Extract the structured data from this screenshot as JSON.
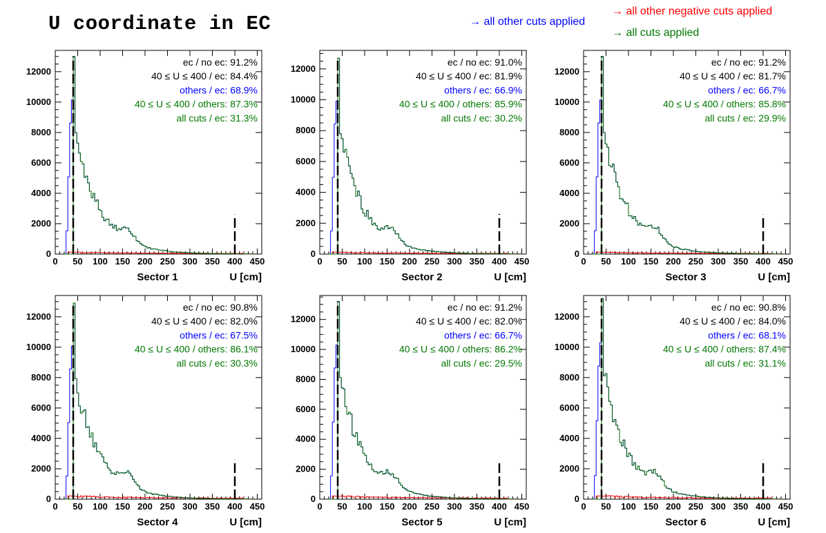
{
  "figure": {
    "title": "U coordinate in EC"
  },
  "legend": [
    {
      "text": "→ all other cuts applied",
      "color": "#0000ff"
    },
    {
      "text": "→ all other negative cuts applied",
      "color": "#ff0000"
    },
    {
      "text": "→ all cuts applied",
      "color": "#007700"
    }
  ],
  "colors": {
    "other_cuts": "#0000ff",
    "negative_cuts": "#ff0000",
    "all_cuts": "#006400",
    "cut_lines": "#000000"
  },
  "chart_data": [
    {
      "type": "histogram",
      "panel": "Sector 1",
      "xlabel": "U [cm]",
      "xlim": [
        0,
        460
      ],
      "ylim": [
        0,
        13400
      ],
      "xticks": [
        0,
        50,
        100,
        150,
        200,
        250,
        300,
        350,
        400,
        450
      ],
      "yticks": [
        0,
        2000,
        4000,
        6000,
        8000,
        10000,
        12000
      ],
      "cut_lines": [
        40,
        400
      ],
      "series": [
        {
          "key": "other_cuts",
          "peak": 13000
        },
        {
          "key": "all_cuts",
          "peak": 13000
        },
        {
          "key": "negative_cuts",
          "peak": 120
        }
      ],
      "stats": [
        {
          "label": "ec / no ec:",
          "value": "91.2%",
          "color": "#000000"
        },
        {
          "label": "40 ≤ U ≤ 400 / ec:",
          "value": "84.4%",
          "color": "#000000"
        },
        {
          "label": "others / ec:",
          "value": "68.9%",
          "color": "#0000ff"
        },
        {
          "label": "40 ≤ U ≤ 400 / others:",
          "value": "87.3%",
          "color": "#007700"
        },
        {
          "label": "all cuts / ec:",
          "value": "31.3%",
          "color": "#007700"
        }
      ]
    },
    {
      "type": "histogram",
      "panel": "Sector 2",
      "xlabel": "U [cm]",
      "xlim": [
        0,
        460
      ],
      "ylim": [
        0,
        13200
      ],
      "xticks": [
        0,
        50,
        100,
        150,
        200,
        250,
        300,
        350,
        400,
        450
      ],
      "yticks": [
        0,
        2000,
        4000,
        6000,
        8000,
        10000,
        12000
      ],
      "cut_lines": [
        40,
        400
      ],
      "series": [
        {
          "key": "other_cuts",
          "peak": 12700
        },
        {
          "key": "all_cuts",
          "peak": 12700
        },
        {
          "key": "negative_cuts",
          "peak": 120
        }
      ],
      "stats": [
        {
          "label": "ec / no ec:",
          "value": "91.0%",
          "color": "#000000"
        },
        {
          "label": "40 ≤ U ≤ 400 / ec:",
          "value": "81.9%",
          "color": "#000000"
        },
        {
          "label": "others / ec:",
          "value": "66.9%",
          "color": "#0000ff"
        },
        {
          "label": "40 ≤ U ≤ 400 / others:",
          "value": "85.9%",
          "color": "#007700"
        },
        {
          "label": "all cuts / ec:",
          "value": "30.2%",
          "color": "#007700"
        }
      ]
    },
    {
      "type": "histogram",
      "panel": "Sector 3",
      "xlabel": "U [cm]",
      "xlim": [
        0,
        460
      ],
      "ylim": [
        0,
        13400
      ],
      "xticks": [
        0,
        50,
        100,
        150,
        200,
        250,
        300,
        350,
        400,
        450
      ],
      "yticks": [
        0,
        2000,
        4000,
        6000,
        8000,
        10000,
        12000
      ],
      "cut_lines": [
        40,
        400
      ],
      "series": [
        {
          "key": "other_cuts",
          "peak": 13000
        },
        {
          "key": "all_cuts",
          "peak": 13000
        },
        {
          "key": "negative_cuts",
          "peak": 120
        }
      ],
      "stats": [
        {
          "label": "ec / no ec:",
          "value": "91.2%",
          "color": "#000000"
        },
        {
          "label": "40 ≤ U ≤ 400 / ec:",
          "value": "81.7%",
          "color": "#000000"
        },
        {
          "label": "others / ec:",
          "value": "66.7%",
          "color": "#0000ff"
        },
        {
          "label": "40 ≤ U ≤ 400 / others:",
          "value": "85.8%",
          "color": "#007700"
        },
        {
          "label": "all cuts / ec:",
          "value": "29.9%",
          "color": "#007700"
        }
      ]
    },
    {
      "type": "histogram",
      "panel": "Sector 4",
      "xlabel": "U [cm]",
      "xlim": [
        0,
        460
      ],
      "ylim": [
        0,
        13400
      ],
      "xticks": [
        0,
        50,
        100,
        150,
        200,
        250,
        300,
        350,
        400,
        450
      ],
      "yticks": [
        0,
        2000,
        4000,
        6000,
        8000,
        10000,
        12000
      ],
      "cut_lines": [
        40,
        400
      ],
      "series": [
        {
          "key": "other_cuts",
          "peak": 12900
        },
        {
          "key": "all_cuts",
          "peak": 12900
        },
        {
          "key": "negative_cuts",
          "peak": 200
        }
      ],
      "stats": [
        {
          "label": "ec / no ec:",
          "value": "90.8%",
          "color": "#000000"
        },
        {
          "label": "40 ≤ U ≤ 400 / ec:",
          "value": "82.0%",
          "color": "#000000"
        },
        {
          "label": "others / ec:",
          "value": "67.5%",
          "color": "#0000ff"
        },
        {
          "label": "40 ≤ U ≤ 400 / others:",
          "value": "86.1%",
          "color": "#007700"
        },
        {
          "label": "all cuts / ec:",
          "value": "30.3%",
          "color": "#007700"
        }
      ]
    },
    {
      "type": "histogram",
      "panel": "Sector 5",
      "xlabel": "U [cm]",
      "xlim": [
        0,
        460
      ],
      "ylim": [
        0,
        13600
      ],
      "xticks": [
        0,
        50,
        100,
        150,
        200,
        250,
        300,
        350,
        400,
        450
      ],
      "yticks": [
        0,
        2000,
        4000,
        6000,
        8000,
        10000,
        12000
      ],
      "cut_lines": [
        40,
        400
      ],
      "series": [
        {
          "key": "other_cuts",
          "peak": 13200
        },
        {
          "key": "all_cuts",
          "peak": 13200
        },
        {
          "key": "negative_cuts",
          "peak": 200
        }
      ],
      "stats": [
        {
          "label": "ec / no ec:",
          "value": "91.2%",
          "color": "#000000"
        },
        {
          "label": "40 ≤ U ≤ 400 / ec:",
          "value": "82.0%",
          "color": "#000000"
        },
        {
          "label": "others / ec:",
          "value": "66.7%",
          "color": "#0000ff"
        },
        {
          "label": "40 ≤ U ≤ 400 / others:",
          "value": "86.2%",
          "color": "#007700"
        },
        {
          "label": "all cuts / ec:",
          "value": "29.5%",
          "color": "#007700"
        }
      ]
    },
    {
      "type": "histogram",
      "panel": "Sector 6",
      "xlabel": "U [cm]",
      "xlim": [
        0,
        460
      ],
      "ylim": [
        0,
        13400
      ],
      "xticks": [
        0,
        50,
        100,
        150,
        200,
        250,
        300,
        350,
        400,
        450
      ],
      "yticks": [
        0,
        2000,
        4000,
        6000,
        8000,
        10000,
        12000
      ],
      "cut_lines": [
        40,
        400
      ],
      "series": [
        {
          "key": "other_cuts",
          "peak": 13200
        },
        {
          "key": "all_cuts",
          "peak": 13200
        },
        {
          "key": "negative_cuts",
          "peak": 200
        }
      ],
      "stats": [
        {
          "label": "ec / no ec:",
          "value": "90.8%",
          "color": "#000000"
        },
        {
          "label": "40 ≤ U ≤ 400 / ec:",
          "value": "84.0%",
          "color": "#000000"
        },
        {
          "label": "others / ec:",
          "value": "68.1%",
          "color": "#0000ff"
        },
        {
          "label": "40 ≤ U ≤ 400 / others:",
          "value": "87.4%",
          "color": "#007700"
        },
        {
          "label": "all cuts / ec:",
          "value": "31.1%",
          "color": "#007700"
        }
      ]
    }
  ]
}
